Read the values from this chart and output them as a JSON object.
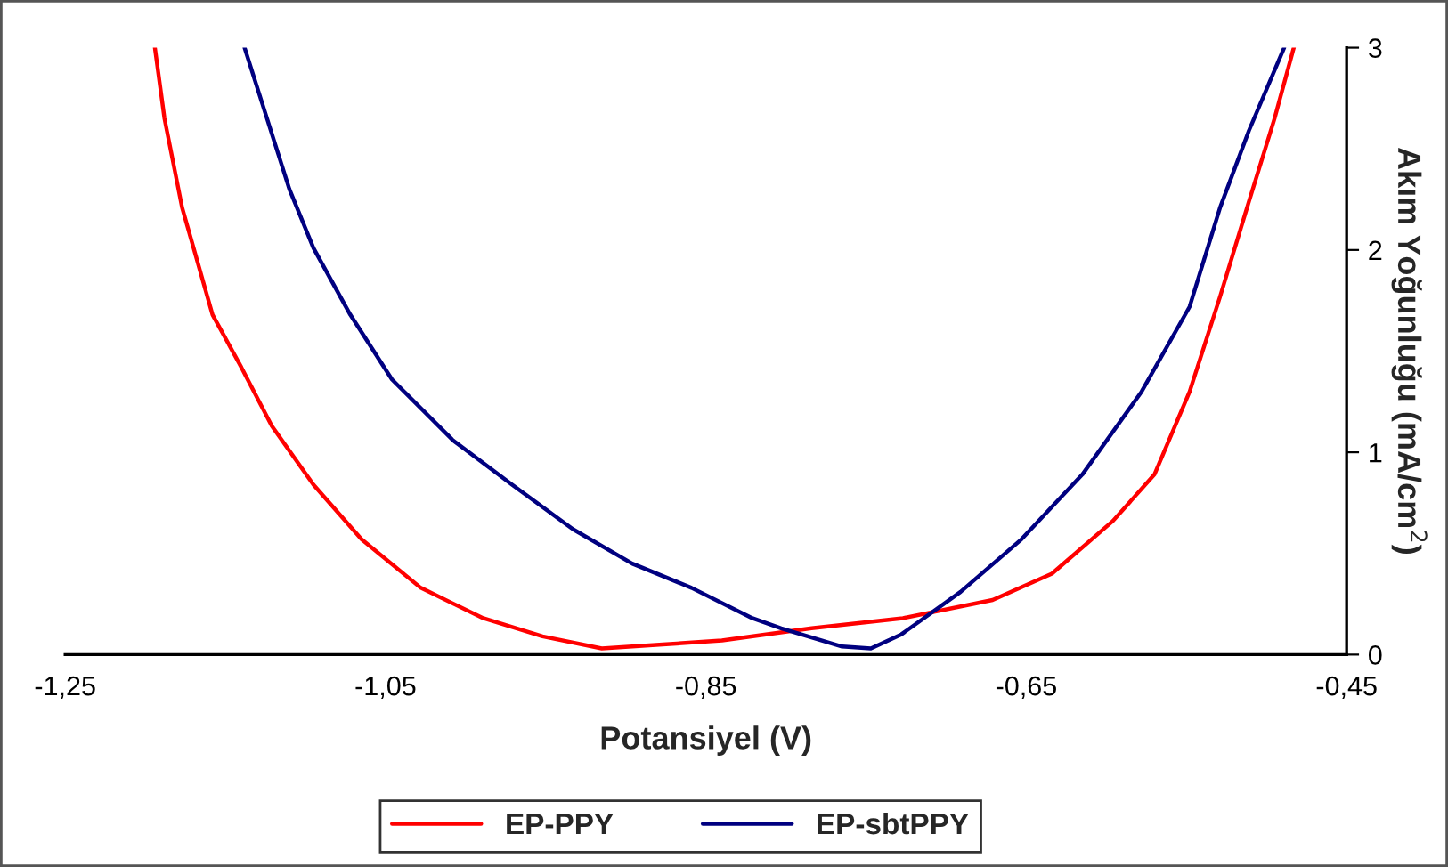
{
  "chart_data": {
    "type": "line",
    "xlabel": "Potansiyel (V)",
    "ylabel": "Akım Yoğunluğu (mA/cm$^{2}$)",
    "xlim": [
      -1.25,
      -0.45
    ],
    "xticks": [
      {
        "value": -1.25,
        "label": "-1,25"
      },
      {
        "value": -1.05,
        "label": "-1,05"
      },
      {
        "value": -0.85,
        "label": "-0,85"
      },
      {
        "value": -0.65,
        "label": "-0,65"
      },
      {
        "value": -0.45,
        "label": "-0,45"
      }
    ],
    "ylim": [
      0,
      3
    ],
    "yticks": [
      0,
      1,
      2,
      3
    ],
    "grid": false,
    "legend": "bottom",
    "series": [
      {
        "name": "EP-PPY",
        "color": "#ff0000",
        "x": [
          -1.194,
          -1.188,
          -1.177,
          -1.158,
          -1.14,
          -1.121,
          -1.095,
          -1.065,
          -1.028,
          -0.989,
          -0.952,
          -0.915,
          -0.877,
          -0.84,
          -0.784,
          -0.727,
          -0.671,
          -0.634,
          -0.596,
          -0.57,
          -0.548,
          -0.529,
          -0.511,
          -0.495,
          -0.483
        ],
        "values": [
          3,
          2.65,
          2.21,
          1.68,
          1.42,
          1.13,
          0.84,
          0.57,
          0.33,
          0.18,
          0.09,
          0.03,
          0.05,
          0.07,
          0.13,
          0.18,
          0.27,
          0.4,
          0.66,
          0.89,
          1.3,
          1.77,
          2.24,
          2.65,
          3
        ]
      },
      {
        "name": "EP-sbtPPY",
        "color": "#000080",
        "x": [
          -1.138,
          -1.124,
          -1.11,
          -1.095,
          -1.072,
          -1.046,
          -1.008,
          -0.971,
          -0.933,
          -0.896,
          -0.859,
          -0.821,
          -0.803,
          -0.765,
          -0.747,
          -0.728,
          -0.691,
          -0.653,
          -0.615,
          -0.578,
          -0.548,
          -0.529,
          -0.511,
          -0.489
        ],
        "values": [
          3,
          2.65,
          2.3,
          2.01,
          1.68,
          1.36,
          1.06,
          0.84,
          0.62,
          0.45,
          0.33,
          0.18,
          0.13,
          0.04,
          0.03,
          0.1,
          0.31,
          0.57,
          0.89,
          1.3,
          1.72,
          2.21,
          2.59,
          3
        ]
      }
    ]
  }
}
